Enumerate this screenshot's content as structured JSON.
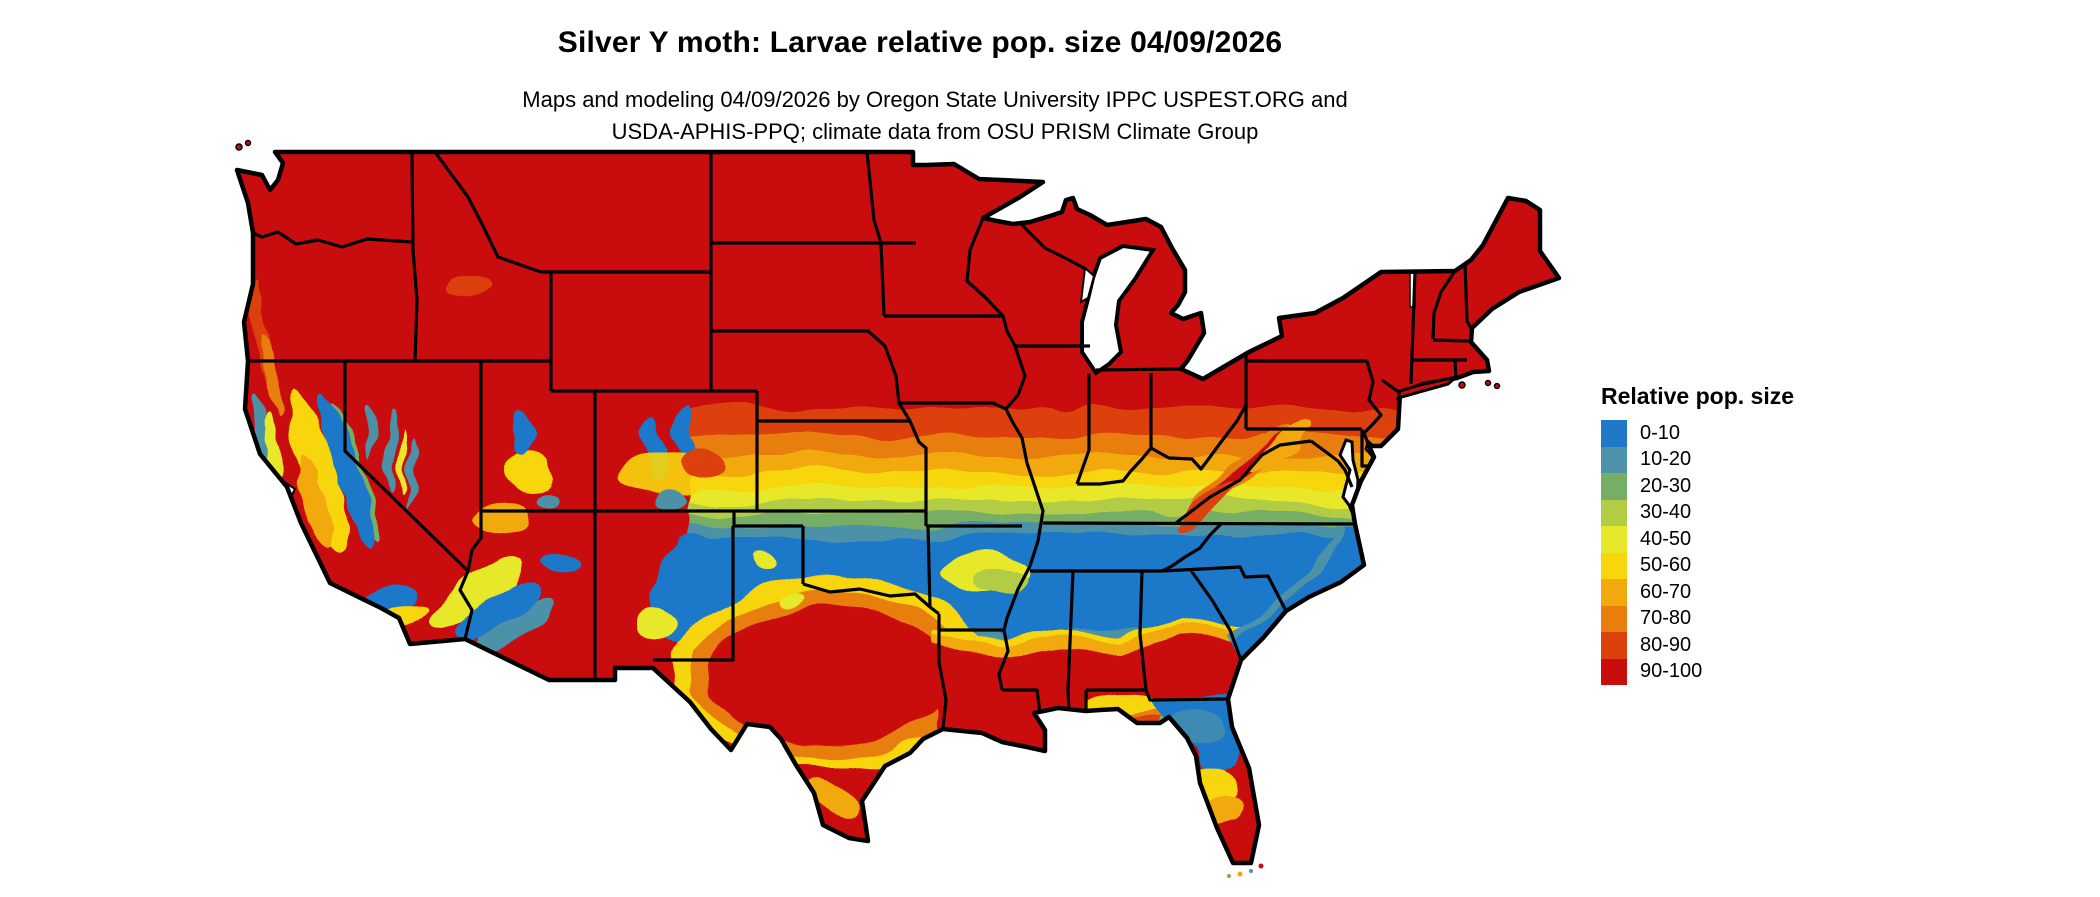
{
  "title": "Silver Y moth: Larvae relative pop. size 04/09/2026",
  "subtitle_line1": "Maps and modeling 04/09/2026 by Oregon State University IPPC USPEST.ORG and",
  "subtitle_line2": "USDA-APHIS-PPQ; climate data from OSU PRISM Climate Group",
  "legend": {
    "title": "Relative pop. size",
    "items": [
      {
        "label": "0-10",
        "color": "#1F78C8"
      },
      {
        "label": "10-20",
        "color": "#4C92A8"
      },
      {
        "label": "20-30",
        "color": "#77AE66"
      },
      {
        "label": "30-40",
        "color": "#B2CC44"
      },
      {
        "label": "40-50",
        "color": "#E7E829"
      },
      {
        "label": "50-60",
        "color": "#F8D60B"
      },
      {
        "label": "60-70",
        "color": "#F2A90D"
      },
      {
        "label": "70-80",
        "color": "#E87E0B"
      },
      {
        "label": "80-90",
        "color": "#DC400B"
      },
      {
        "label": "90-100",
        "color": "#C90D0E"
      }
    ]
  },
  "map": {
    "area": "Contiguous United States",
    "type": "raster choropleth with state boundaries",
    "value_name": "Relative pop. size",
    "bins": [
      "0-10",
      "10-20",
      "20-30",
      "30-40",
      "40-50",
      "50-60",
      "60-70",
      "70-80",
      "80-90",
      "90-100"
    ],
    "qualitative_pattern": [
      "Northern states (Pacific Northwest, northern Rockies, upper Midwest, Great Lakes, Northeast) almost entirely 90-100 (red)",
      "Banded north-to-south transition (80-90 down to 0-10) across the central plains, Ohio valley and mid-Atlantic",
      "Broad 0-10 (blue) belt across Kansas, Oklahoma, Missouri, Kentucky, Tennessee, the Carolinas and north Texas",
      "Second transition back to 90-100 (red) across central Texas, Louisiana, southern Mississippi/Alabama/Georgia",
      "Northern Florida 0-10 (blue) grading to 90-100 (red) at the southern tip",
      "Mottled mix of classes in western mountains: California, Nevada, Utah, Arizona, Colorado, New Mexico"
    ]
  }
}
